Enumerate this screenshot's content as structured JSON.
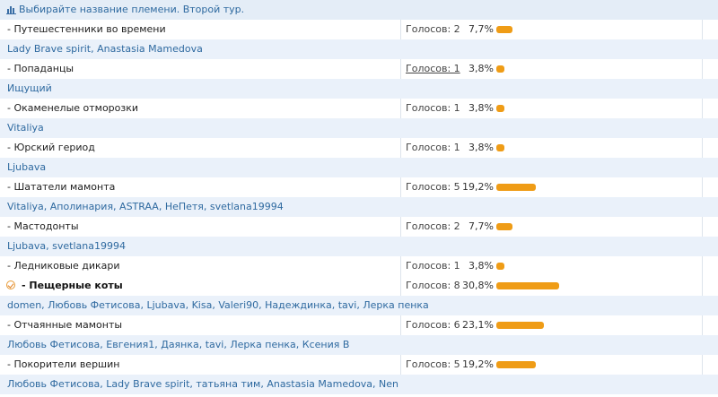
{
  "poll": {
    "title": "Выбирайте название племени. Второй тур.",
    "accent_color": "#ef9c16",
    "rows": [
      {
        "kind": "option",
        "label": "- Путешестенники во времени",
        "votes": "Голосов: 2",
        "percent": "7,7%",
        "share": 7.7
      },
      {
        "kind": "voters",
        "text": "Lady Brave spirit, Anastasia Mamedova"
      },
      {
        "kind": "option",
        "label": "- Попаданцы",
        "votes": "Голосов: 1",
        "percent": "3,8%",
        "share": 3.8,
        "votes_link": true
      },
      {
        "kind": "voters",
        "text": "Ищущий"
      },
      {
        "kind": "option",
        "label": "- Окаменелые отморозки",
        "votes": "Голосов: 1",
        "percent": "3,8%",
        "share": 3.8
      },
      {
        "kind": "voters",
        "text": "Vitaliya"
      },
      {
        "kind": "option",
        "label": "- Юрский гериод",
        "votes": "Голосов: 1",
        "percent": "3,8%",
        "share": 3.8
      },
      {
        "kind": "voters",
        "text": "Ljubava"
      },
      {
        "kind": "option",
        "label": "- Шататели мамонта",
        "votes": "Голосов: 5",
        "percent": "19,2%",
        "share": 19.2
      },
      {
        "kind": "voters",
        "text": "Vitaliya, Аполинария, ASTRAA, НеПетя, svetlana19994"
      },
      {
        "kind": "option",
        "label": "- Мастодонты",
        "votes": "Голосов: 2",
        "percent": "7,7%",
        "share": 7.7
      },
      {
        "kind": "voters",
        "text": "Ljubava, svetlana19994"
      },
      {
        "kind": "option",
        "label": "- Ледниковые дикари",
        "votes": "Голосов: 1",
        "percent": "3,8%",
        "share": 3.8
      },
      {
        "kind": "option",
        "label": "- Пещерные коты",
        "votes": "Голосов: 8",
        "percent": "30,8%",
        "share": 30.8,
        "winner": true
      },
      {
        "kind": "voters",
        "text": "domen, Любовь Фетисова, Ljubava, Kisa, Valeri90, Надеждинка, tavi, Лерка пенка"
      },
      {
        "kind": "option",
        "label": "- Отчаянные мамонты",
        "votes": "Голосов: 6",
        "percent": "23,1%",
        "share": 23.1
      },
      {
        "kind": "voters",
        "text": "Любовь Фетисова, Евгения1, Даянка, tavi, Лерка пенка, Ксения В"
      },
      {
        "kind": "option",
        "label": "- Покорители вершин",
        "votes": "Голосов: 5",
        "percent": "19,2%",
        "share": 19.2
      },
      {
        "kind": "voters",
        "text": "Любовь Фетисова, Lady Brave spirit, татьяна тим, Anastasia Mamedova, Nen"
      }
    ]
  }
}
